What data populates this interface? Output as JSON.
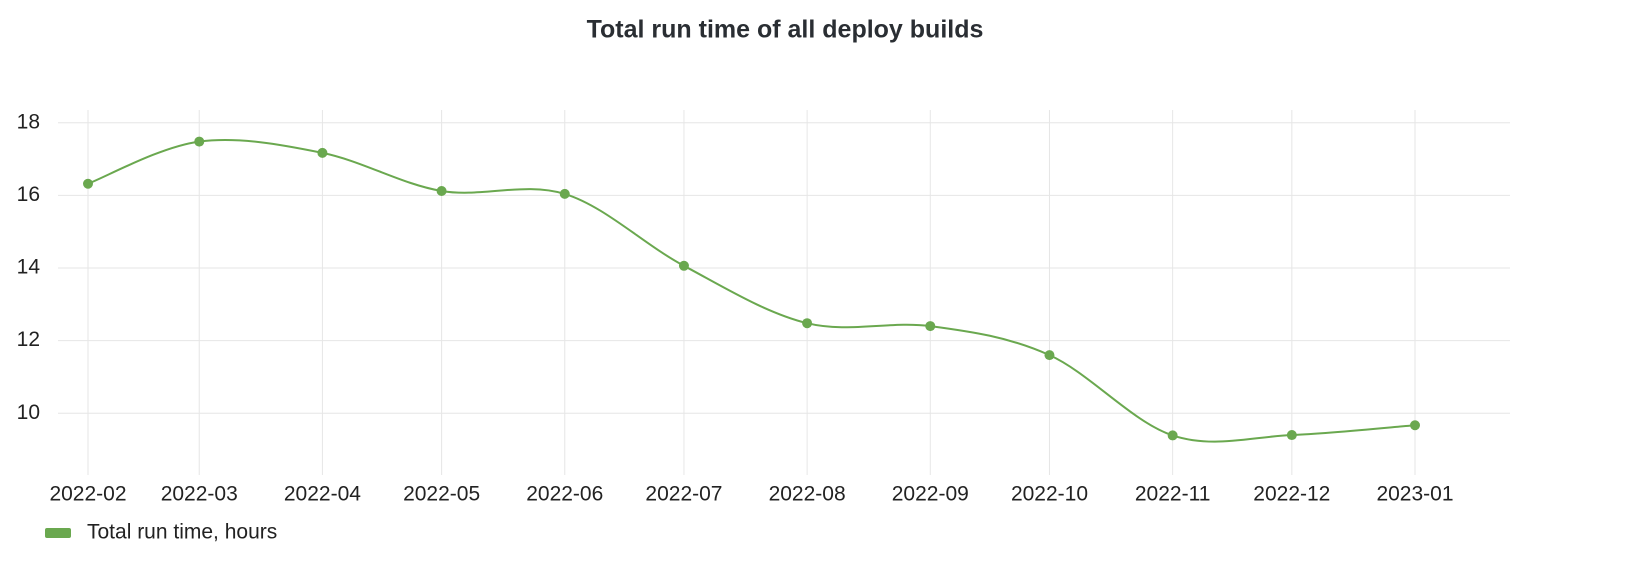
{
  "chart_data": {
    "type": "line",
    "title": "Total run time of all deploy builds",
    "categories": [
      "2022-02",
      "2022-03",
      "2022-04",
      "2022-05",
      "2022-06",
      "2022-07",
      "2022-08",
      "2022-09",
      "2022-10",
      "2022-11",
      "2022-12",
      "2023-01"
    ],
    "series": [
      {
        "name": "Total run time, hours",
        "color": "#6aa84f",
        "values": [
          16.32,
          17.48,
          17.17,
          16.12,
          16.04,
          14.06,
          12.48,
          12.4,
          11.6,
          9.39,
          9.4,
          9.67
        ]
      }
    ],
    "ylim": [
      8.3,
      18.35
    ],
    "yticks": [
      10,
      12,
      14,
      16,
      18
    ],
    "grid": true,
    "legend": "bottom-left"
  }
}
